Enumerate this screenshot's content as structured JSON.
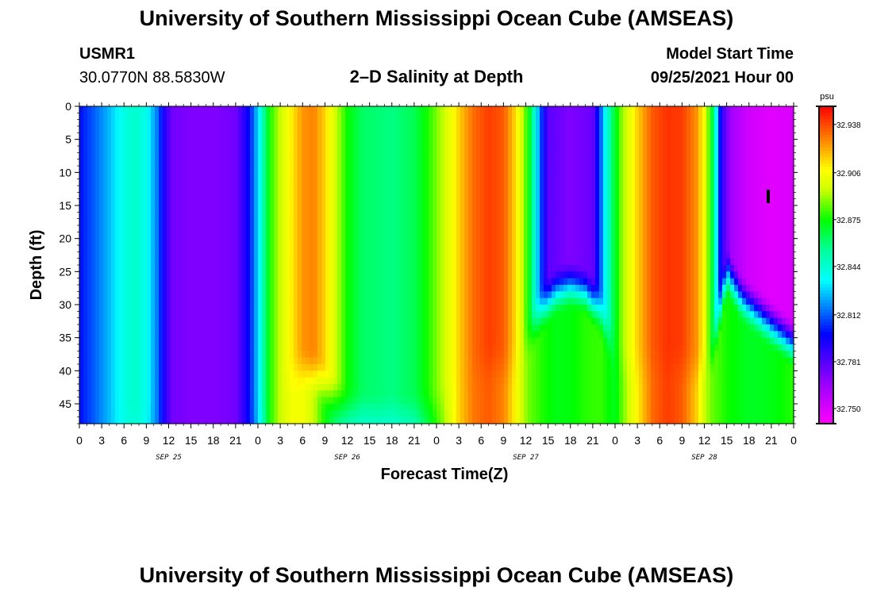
{
  "header": {
    "title_top": "University of Southern Mississippi Ocean Cube (AMSEAS)",
    "station_id": "USMR1",
    "station_coords": "30.0770N  88.5830W",
    "plot_title": "2–D Salinity at Depth",
    "model_start_label": "Model Start Time",
    "model_start_value": "09/25/2021 Hour 00",
    "title_bottom": "University of Southern Mississippi Ocean Cube (AMSEAS)"
  },
  "chart_data": {
    "type": "heatmap",
    "title": "2–D Salinity at Depth",
    "xlabel": "Forecast Time(Z)",
    "ylabel": "Depth (ft)",
    "x_range_hours": [
      0,
      96
    ],
    "ylim": [
      0,
      48
    ],
    "y_ticks": [
      0,
      5,
      10,
      15,
      20,
      25,
      30,
      35,
      40,
      45
    ],
    "x_tick_labels": [
      "0",
      "3",
      "6",
      "9",
      "12",
      "15",
      "18",
      "21",
      "0",
      "3",
      "6",
      "9",
      "12",
      "15",
      "18",
      "21",
      "0",
      "3",
      "6",
      "9",
      "12",
      "15",
      "18",
      "21",
      "0",
      "3",
      "6",
      "9",
      "12",
      "15",
      "18",
      "21",
      "0"
    ],
    "day_labels": [
      {
        "hour": 12,
        "label": "SEP 25"
      },
      {
        "hour": 36,
        "label": "SEP 26"
      },
      {
        "hour": 60,
        "label": "SEP 27"
      },
      {
        "hour": 84,
        "label": "SEP 28"
      }
    ],
    "colorbar": {
      "unit": "psu",
      "min": 32.74,
      "max": 32.95,
      "tick_values": [
        32.75,
        32.781,
        32.812,
        32.844,
        32.875,
        32.906,
        32.938
      ],
      "tick_labels": [
        "32.750",
        "32.781",
        "32.812",
        "32.844",
        "32.875",
        "32.906",
        "32.938"
      ]
    },
    "surface_salinity_by_hour": [
      {
        "hour": 0,
        "value": 32.8
      },
      {
        "hour": 2,
        "value": 32.812
      },
      {
        "hour": 4,
        "value": 32.825
      },
      {
        "hour": 6,
        "value": 32.84
      },
      {
        "hour": 7.5,
        "value": 32.845
      },
      {
        "hour": 9,
        "value": 32.838
      },
      {
        "hour": 10.5,
        "value": 32.815
      },
      {
        "hour": 11.5,
        "value": 32.79
      },
      {
        "hour": 12.5,
        "value": 32.775
      },
      {
        "hour": 15,
        "value": 32.772
      },
      {
        "hour": 18,
        "value": 32.772
      },
      {
        "hour": 21,
        "value": 32.775
      },
      {
        "hour": 22.5,
        "value": 32.795
      },
      {
        "hour": 23.5,
        "value": 32.815
      },
      {
        "hour": 24.5,
        "value": 32.845
      },
      {
        "hour": 25.5,
        "value": 32.875
      },
      {
        "hour": 27,
        "value": 32.895
      },
      {
        "hour": 28.5,
        "value": 32.91
      },
      {
        "hour": 30,
        "value": 32.925
      },
      {
        "hour": 31.5,
        "value": 32.928
      },
      {
        "hour": 33,
        "value": 32.915
      },
      {
        "hour": 34.5,
        "value": 32.895
      },
      {
        "hour": 36,
        "value": 32.875
      },
      {
        "hour": 38,
        "value": 32.862
      },
      {
        "hour": 42,
        "value": 32.858
      },
      {
        "hour": 45,
        "value": 32.864
      },
      {
        "hour": 47,
        "value": 32.878
      },
      {
        "hour": 49,
        "value": 32.895
      },
      {
        "hour": 51,
        "value": 32.915
      },
      {
        "hour": 53,
        "value": 32.932
      },
      {
        "hour": 55,
        "value": 32.94
      },
      {
        "hour": 57,
        "value": 32.935
      },
      {
        "hour": 58.5,
        "value": 32.915
      },
      {
        "hour": 59.5,
        "value": 32.895
      },
      {
        "hour": 60.5,
        "value": 32.87
      },
      {
        "hour": 61.3,
        "value": 32.84
      },
      {
        "hour": 62,
        "value": 32.81
      },
      {
        "hour": 63,
        "value": 32.78
      },
      {
        "hour": 66,
        "value": 32.772
      },
      {
        "hour": 69,
        "value": 32.777
      },
      {
        "hour": 70,
        "value": 32.81
      },
      {
        "hour": 71,
        "value": 32.845
      },
      {
        "hour": 72,
        "value": 32.87
      },
      {
        "hour": 73,
        "value": 32.89
      },
      {
        "hour": 75,
        "value": 32.915
      },
      {
        "hour": 77,
        "value": 32.935
      },
      {
        "hour": 79,
        "value": 32.942
      },
      {
        "hour": 81,
        "value": 32.94
      },
      {
        "hour": 83,
        "value": 32.925
      },
      {
        "hour": 84,
        "value": 32.905
      },
      {
        "hour": 85,
        "value": 32.87
      },
      {
        "hour": 85.6,
        "value": 32.835
      },
      {
        "hour": 86.3,
        "value": 32.79
      },
      {
        "hour": 87.5,
        "value": 32.765
      },
      {
        "hour": 90,
        "value": 32.752
      },
      {
        "hour": 93,
        "value": 32.748
      },
      {
        "hour": 96,
        "value": 32.75
      }
    ],
    "deep_salinity_by_hour": [
      {
        "hour": 0,
        "value": 32.8
      },
      {
        "hour": 2,
        "value": 32.812
      },
      {
        "hour": 4,
        "value": 32.825
      },
      {
        "hour": 6,
        "value": 32.838
      },
      {
        "hour": 7.5,
        "value": 32.842
      },
      {
        "hour": 9,
        "value": 32.835
      },
      {
        "hour": 10.5,
        "value": 32.815
      },
      {
        "hour": 11.5,
        "value": 32.79
      },
      {
        "hour": 12.5,
        "value": 32.775
      },
      {
        "hour": 15,
        "value": 32.772
      },
      {
        "hour": 18,
        "value": 32.772
      },
      {
        "hour": 21,
        "value": 32.775
      },
      {
        "hour": 22.5,
        "value": 32.795
      },
      {
        "hour": 23.5,
        "value": 32.812
      },
      {
        "hour": 24.5,
        "value": 32.84
      },
      {
        "hour": 25.5,
        "value": 32.875
      },
      {
        "hour": 27,
        "value": 32.895
      },
      {
        "hour": 28.5,
        "value": 32.905
      },
      {
        "hour": 30,
        "value": 32.905
      },
      {
        "hour": 31.5,
        "value": 32.895
      },
      {
        "hour": 33,
        "value": 32.875
      },
      {
        "hour": 34.5,
        "value": 32.86
      },
      {
        "hour": 36,
        "value": 32.848
      },
      {
        "hour": 38,
        "value": 32.84
      },
      {
        "hour": 42,
        "value": 32.838
      },
      {
        "hour": 45,
        "value": 32.845
      },
      {
        "hour": 47,
        "value": 32.865
      },
      {
        "hour": 49,
        "value": 32.89
      },
      {
        "hour": 51,
        "value": 32.915
      },
      {
        "hour": 53,
        "value": 32.93
      },
      {
        "hour": 55,
        "value": 32.935
      },
      {
        "hour": 57,
        "value": 32.928
      },
      {
        "hour": 58.5,
        "value": 32.91
      },
      {
        "hour": 59.5,
        "value": 32.895
      },
      {
        "hour": 60.5,
        "value": 32.885
      },
      {
        "hour": 62,
        "value": 32.878
      },
      {
        "hour": 64,
        "value": 32.872
      },
      {
        "hour": 66,
        "value": 32.873
      },
      {
        "hour": 68,
        "value": 32.878
      },
      {
        "hour": 70,
        "value": 32.88
      },
      {
        "hour": 71,
        "value": 32.875
      },
      {
        "hour": 72,
        "value": 32.87
      },
      {
        "hour": 73,
        "value": 32.885
      },
      {
        "hour": 75,
        "value": 32.91
      },
      {
        "hour": 77,
        "value": 32.932
      },
      {
        "hour": 79,
        "value": 32.94
      },
      {
        "hour": 81,
        "value": 32.935
      },
      {
        "hour": 83,
        "value": 32.915
      },
      {
        "hour": 84,
        "value": 32.895
      },
      {
        "hour": 85,
        "value": 32.885
      },
      {
        "hour": 87,
        "value": 32.876
      },
      {
        "hour": 90,
        "value": 32.87
      },
      {
        "hour": 93,
        "value": 32.872
      },
      {
        "hour": 96,
        "value": 32.878
      }
    ],
    "surface_layer_thickness_by_hour": [
      {
        "hour": 0,
        "value": 48
      },
      {
        "hour": 24,
        "value": 48
      },
      {
        "hour": 26,
        "value": 44
      },
      {
        "hour": 28,
        "value": 41
      },
      {
        "hour": 30,
        "value": 40
      },
      {
        "hour": 32,
        "value": 41
      },
      {
        "hour": 34,
        "value": 44
      },
      {
        "hour": 36,
        "value": 46
      },
      {
        "hour": 40,
        "value": 47
      },
      {
        "hour": 44,
        "value": 47
      },
      {
        "hour": 48,
        "value": 46
      },
      {
        "hour": 50,
        "value": 43
      },
      {
        "hour": 53,
        "value": 40
      },
      {
        "hour": 56,
        "value": 39
      },
      {
        "hour": 58,
        "value": 40
      },
      {
        "hour": 60,
        "value": 36
      },
      {
        "hour": 62,
        "value": 31
      },
      {
        "hour": 64,
        "value": 28
      },
      {
        "hour": 66,
        "value": 27
      },
      {
        "hour": 68,
        "value": 28
      },
      {
        "hour": 70,
        "value": 31
      },
      {
        "hour": 72,
        "value": 38
      },
      {
        "hour": 74,
        "value": 40
      },
      {
        "hour": 77,
        "value": 39
      },
      {
        "hour": 80,
        "value": 39
      },
      {
        "hour": 83,
        "value": 40
      },
      {
        "hour": 85,
        "value": 38
      },
      {
        "hour": 87,
        "value": 25
      },
      {
        "hour": 89,
        "value": 29
      },
      {
        "hour": 92,
        "value": 32
      },
      {
        "hour": 94,
        "value": 34
      },
      {
        "hour": 96,
        "value": 36
      }
    ]
  }
}
